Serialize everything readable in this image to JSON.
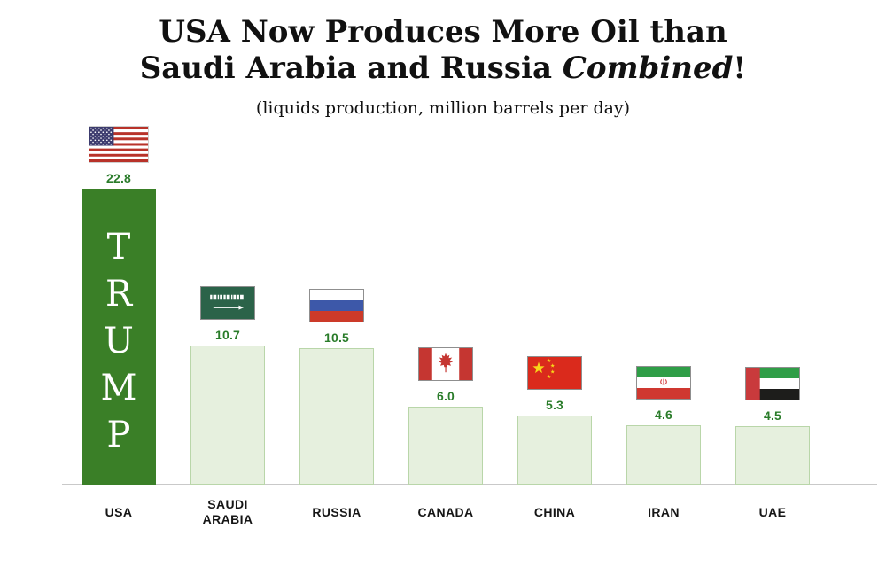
{
  "title": {
    "line1": "USA Now Produces More Oil than",
    "line2_prefix": "Saudi Arabia and Russia ",
    "line2_emphasis": "Combined",
    "line2_suffix": "!"
  },
  "subtitle": "(liquids production, million barrels per day)",
  "chart_data": {
    "type": "bar",
    "title": "USA Now Produces More Oil than Saudi Arabia and Russia Combined!",
    "subtitle": "(liquids production, million barrels per day)",
    "categories": [
      "USA",
      "SAUDI ARABIA",
      "RUSSIA",
      "CANADA",
      "CHINA",
      "IRAN",
      "UAE"
    ],
    "values": [
      22.8,
      10.7,
      10.5,
      6.0,
      5.3,
      4.6,
      4.5
    ],
    "value_labels": [
      "22.8",
      "10.7",
      "10.5",
      "6.0",
      "5.3",
      "4.6",
      "4.5"
    ],
    "ylim": [
      0,
      23
    ],
    "grid": false,
    "legend": false,
    "bars": [
      {
        "label": "USA",
        "value": 22.8,
        "value_label": "22.8",
        "flag": "usa",
        "highlight": true,
        "overlay_text": "TRUMP"
      },
      {
        "label": "SAUDI ARABIA",
        "value": 10.7,
        "value_label": "10.7",
        "flag": "saudi-arabia",
        "highlight": false
      },
      {
        "label": "RUSSIA",
        "value": 10.5,
        "value_label": "10.5",
        "flag": "russia",
        "highlight": false
      },
      {
        "label": "CANADA",
        "value": 6.0,
        "value_label": "6.0",
        "flag": "canada",
        "highlight": false
      },
      {
        "label": "CHINA",
        "value": 5.3,
        "value_label": "5.3",
        "flag": "china",
        "highlight": false
      },
      {
        "label": "IRAN",
        "value": 4.6,
        "value_label": "4.6",
        "flag": "iran",
        "highlight": false
      },
      {
        "label": "UAE",
        "value": 4.5,
        "value_label": "4.5",
        "flag": "uae",
        "highlight": false
      }
    ],
    "colors": {
      "highlight_bar": "#3a7f27",
      "bar_fill": "#e6f0de",
      "bar_border": "#b9d6a9",
      "value_text": "#2a7c2a",
      "axis_line": "#c9c9c9",
      "label_text": "#151515",
      "overlay_text": "#ffffff"
    }
  }
}
